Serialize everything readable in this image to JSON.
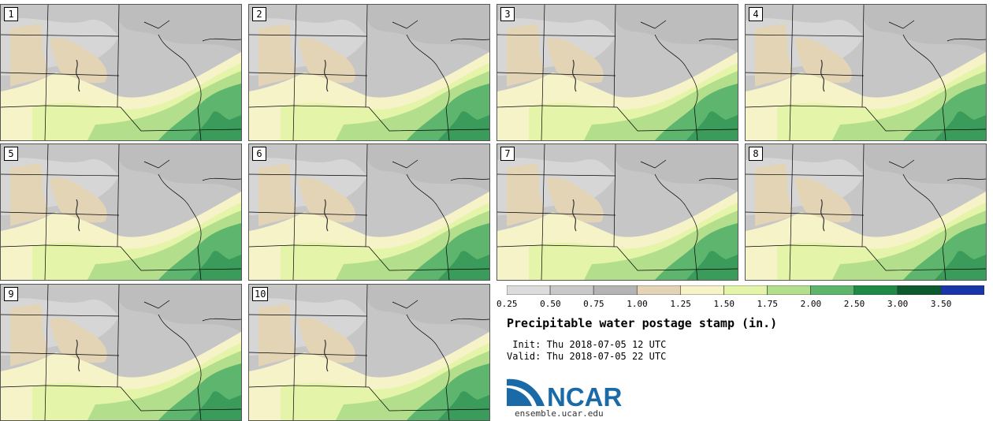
{
  "members": [
    "1",
    "2",
    "3",
    "4",
    "5",
    "6",
    "7",
    "8",
    "9",
    "10"
  ],
  "colorbar": {
    "colors": [
      "#dcdcdc",
      "#c8c8c8",
      "#b4b4b4",
      "#e3d4b6",
      "#f6f3c9",
      "#e4f4a8",
      "#b3de8c",
      "#5eb56d",
      "#1f8a46",
      "#0c5a2d",
      "#1a35a8"
    ],
    "labels": [
      "0.25",
      "0.50",
      "0.75",
      "1.00",
      "1.25",
      "1.50",
      "1.75",
      "2.00",
      "2.50",
      "3.00",
      "3.50"
    ]
  },
  "title": "Precipitable water postage stamp (in.)",
  "init": " Init: Thu 2018-07-05 12 UTC",
  "valid": "Valid: Thu 2018-07-05 22 UTC",
  "logo": {
    "text": "NCAR",
    "url": "ensemble.ucar.edu",
    "brand_color": "#1b6aa8"
  }
}
